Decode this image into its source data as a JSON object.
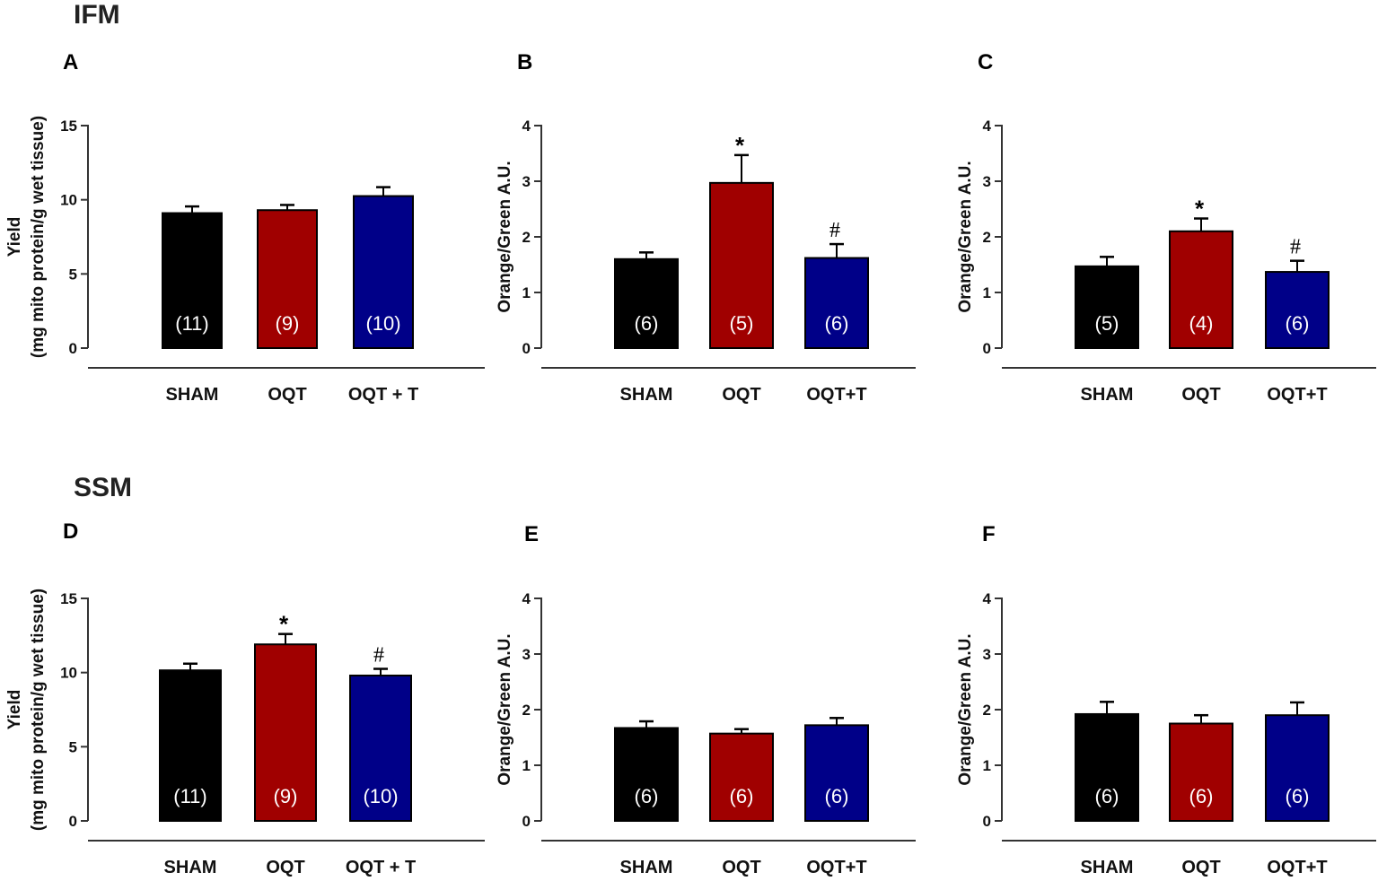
{
  "sections": [
    {
      "label": "IFM"
    },
    {
      "label": "SSM"
    }
  ],
  "colors": {
    "SHAM": "#000000",
    "OQT": "#a00000",
    "OQT_T": "#000088"
  },
  "chart_data": [
    {
      "panel": "A",
      "type": "bar",
      "ylabel_lines": [
        "Yield",
        "(mg mito protein/g wet tissue)"
      ],
      "ylim": [
        0,
        15
      ],
      "yticks": [
        0,
        5,
        10,
        15
      ],
      "categories": [
        "SHAM",
        "OQT",
        "OQT + T"
      ],
      "values": [
        9.1,
        9.3,
        10.25
      ],
      "errors": [
        0.45,
        0.35,
        0.6
      ],
      "n": [
        "(11)",
        "(9)",
        "(10)"
      ],
      "significance": [
        "",
        "",
        ""
      ]
    },
    {
      "panel": "B",
      "type": "bar",
      "ylabel_lines": [
        "Orange/Green A.U."
      ],
      "ylim": [
        0,
        4
      ],
      "yticks": [
        0,
        1,
        2,
        3,
        4
      ],
      "categories": [
        "SHAM",
        "OQT",
        "OQT+T"
      ],
      "values": [
        1.6,
        2.97,
        1.62
      ],
      "errors": [
        0.12,
        0.5,
        0.25
      ],
      "n": [
        "(6)",
        "(5)",
        "(6)"
      ],
      "significance": [
        "",
        "*",
        "#"
      ]
    },
    {
      "panel": "C",
      "type": "bar",
      "ylabel_lines": [
        "Orange/Green A.U."
      ],
      "ylim": [
        0,
        4
      ],
      "yticks": [
        0,
        1,
        2,
        3,
        4
      ],
      "categories": [
        "SHAM",
        "OQT",
        "OQT+T"
      ],
      "values": [
        1.47,
        2.1,
        1.37
      ],
      "errors": [
        0.17,
        0.23,
        0.2
      ],
      "n": [
        "(5)",
        "(4)",
        "(6)"
      ],
      "significance": [
        "",
        "*",
        "#"
      ]
    },
    {
      "panel": "D",
      "type": "bar",
      "ylabel_lines": [
        "Yield",
        "(mg mito protein/g wet tissue)"
      ],
      "ylim": [
        0,
        15
      ],
      "yticks": [
        0,
        5,
        10,
        15
      ],
      "categories": [
        "SHAM",
        "OQT",
        "OQT + T"
      ],
      "values": [
        10.15,
        11.9,
        9.8
      ],
      "errors": [
        0.45,
        0.7,
        0.45
      ],
      "n": [
        "(11)",
        "(9)",
        "(10)"
      ],
      "significance": [
        "",
        "*",
        "#"
      ]
    },
    {
      "panel": "E",
      "type": "bar",
      "ylabel_lines": [
        "Orange/Green A.U."
      ],
      "ylim": [
        0,
        4
      ],
      "yticks": [
        0,
        1,
        2,
        3,
        4
      ],
      "categories": [
        "SHAM",
        "OQT",
        "OQT+T"
      ],
      "values": [
        1.67,
        1.57,
        1.72
      ],
      "errors": [
        0.12,
        0.08,
        0.13
      ],
      "n": [
        "(6)",
        "(6)",
        "(6)"
      ],
      "significance": [
        "",
        "",
        ""
      ]
    },
    {
      "panel": "F",
      "type": "bar",
      "ylabel_lines": [
        "Orange/Green A.U."
      ],
      "ylim": [
        0,
        4
      ],
      "yticks": [
        0,
        1,
        2,
        3,
        4
      ],
      "categories": [
        "SHAM",
        "OQT",
        "OQT+T"
      ],
      "values": [
        1.92,
        1.75,
        1.9
      ],
      "errors": [
        0.22,
        0.15,
        0.23
      ],
      "n": [
        "(6)",
        "(6)",
        "(6)"
      ],
      "significance": [
        "",
        "",
        ""
      ]
    }
  ]
}
